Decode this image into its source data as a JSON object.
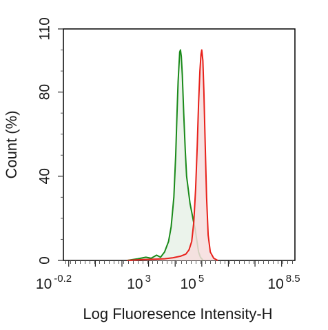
{
  "chart_data": {
    "type": "histogram",
    "xlabel": "Log Fluoresence Intensity-H",
    "ylabel": "Count  (%)",
    "xscale": "log10",
    "xlim_exp": [
      -0.2,
      8.5
    ],
    "ylim": [
      0,
      110
    ],
    "xtick_labels": [
      {
        "base": "10",
        "exp": "-0.2",
        "value": -0.2
      },
      {
        "base": "10",
        "exp": "3",
        "value": 3
      },
      {
        "base": "10",
        "exp": "5",
        "value": 5
      },
      {
        "base": "10",
        "exp": "8.5",
        "value": 8.5
      }
    ],
    "ytick_labels": [
      {
        "text": "0",
        "value": 0
      },
      {
        "text": "40",
        "value": 40
      },
      {
        "text": "80",
        "value": 80
      },
      {
        "text": "110",
        "value": 110
      }
    ],
    "grid": false,
    "legend": "none",
    "series": [
      {
        "color": "#1a8a1a",
        "fill": "#e8f1e8",
        "points": [
          [
            2.2,
            0
          ],
          [
            2.6,
            0.8
          ],
          [
            2.9,
            1.5
          ],
          [
            3.1,
            1.0
          ],
          [
            3.3,
            2.5
          ],
          [
            3.45,
            1.5
          ],
          [
            3.6,
            4.0
          ],
          [
            3.75,
            9.0
          ],
          [
            3.85,
            16.0
          ],
          [
            3.95,
            30.0
          ],
          [
            4.02,
            50.0
          ],
          [
            4.07,
            70.0
          ],
          [
            4.11,
            85.0
          ],
          [
            4.14,
            92.0
          ],
          [
            4.17,
            99.0
          ],
          [
            4.2,
            100.0
          ],
          [
            4.23,
            97.0
          ],
          [
            4.27,
            88.0
          ],
          [
            4.32,
            70.0
          ],
          [
            4.38,
            52.0
          ],
          [
            4.43,
            40.0
          ],
          [
            4.5,
            33.0
          ],
          [
            4.56,
            27.0
          ],
          [
            4.62,
            23.0
          ],
          [
            4.68,
            19.0
          ],
          [
            4.75,
            15.0
          ],
          [
            4.82,
            9.0
          ],
          [
            4.88,
            4.0
          ],
          [
            4.95,
            1.5
          ],
          [
            5.05,
            0
          ]
        ]
      },
      {
        "color": "#e8201a",
        "fill": "#f6dddd",
        "points": [
          [
            2.2,
            0
          ],
          [
            2.8,
            0.4
          ],
          [
            3.2,
            0.6
          ],
          [
            3.6,
            0.8
          ],
          [
            3.9,
            1.2
          ],
          [
            4.2,
            2.0
          ],
          [
            4.4,
            3.0
          ],
          [
            4.52,
            5.0
          ],
          [
            4.62,
            9.0
          ],
          [
            4.7,
            18.0
          ],
          [
            4.77,
            34.0
          ],
          [
            4.83,
            55.0
          ],
          [
            4.88,
            75.0
          ],
          [
            4.93,
            90.0
          ],
          [
            4.97,
            98.0
          ],
          [
            5.0,
            100.0
          ],
          [
            5.04,
            95.0
          ],
          [
            5.08,
            80.0
          ],
          [
            5.13,
            55.0
          ],
          [
            5.18,
            30.0
          ],
          [
            5.24,
            12.0
          ],
          [
            5.32,
            4.0
          ],
          [
            5.45,
            1.0
          ],
          [
            5.6,
            0
          ]
        ]
      }
    ]
  }
}
